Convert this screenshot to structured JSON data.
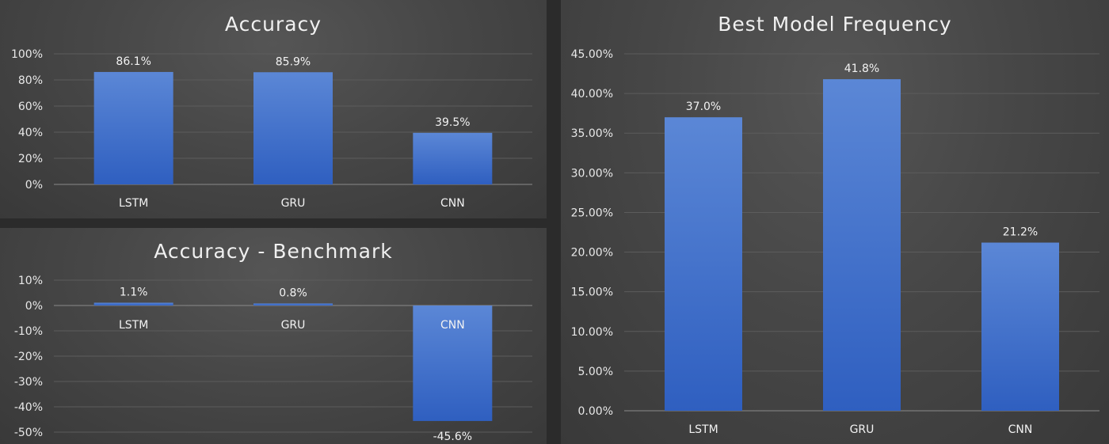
{
  "colors": {
    "bar_top": "#5b87d6",
    "bar_bottom": "#2f5fc0",
    "background": "#404040"
  },
  "chart_data": [
    {
      "id": "acc",
      "type": "bar",
      "title": "Accuracy",
      "categories": [
        "LSTM",
        "GRU",
        "CNN"
      ],
      "values": [
        86.1,
        85.9,
        39.5
      ],
      "value_labels": [
        "86.1%",
        "85.9%",
        "39.5%"
      ],
      "ylim": [
        0,
        100
      ],
      "yticks": [
        0,
        20,
        40,
        60,
        80,
        100
      ],
      "ytick_labels": [
        "0%",
        "20%",
        "40%",
        "60%",
        "80%",
        "100%"
      ],
      "category_labels_position": "below-axis",
      "grid": true,
      "legend": "none"
    },
    {
      "id": "bench",
      "type": "bar",
      "title": "Accuracy - Benchmark",
      "categories": [
        "LSTM",
        "GRU",
        "CNN"
      ],
      "values": [
        1.1,
        0.8,
        -45.6
      ],
      "value_labels": [
        "1.1%",
        "0.8%",
        "-45.6%"
      ],
      "ylim": [
        -50,
        10
      ],
      "yticks": [
        10,
        0,
        -10,
        -20,
        -30,
        -40,
        -50
      ],
      "ytick_labels": [
        "10%",
        "0%",
        "-10%",
        "-20%",
        "-30%",
        "-40%",
        "-50%"
      ],
      "category_labels_position": "at-zero-line",
      "grid": true,
      "legend": "none"
    },
    {
      "id": "best",
      "type": "bar",
      "title": "Best Model Frequency",
      "categories": [
        "LSTM",
        "GRU",
        "CNN"
      ],
      "values": [
        37.0,
        41.8,
        21.2
      ],
      "value_labels": [
        "37.0%",
        "41.8%",
        "21.2%"
      ],
      "ylim": [
        0,
        45
      ],
      "yticks": [
        0,
        5,
        10,
        15,
        20,
        25,
        30,
        35,
        40,
        45
      ],
      "ytick_labels": [
        "0.00%",
        "5.00%",
        "10.00%",
        "15.00%",
        "20.00%",
        "25.00%",
        "30.00%",
        "35.00%",
        "40.00%",
        "45.00%"
      ],
      "category_labels_position": "below-axis",
      "grid": true,
      "legend": "none"
    }
  ]
}
